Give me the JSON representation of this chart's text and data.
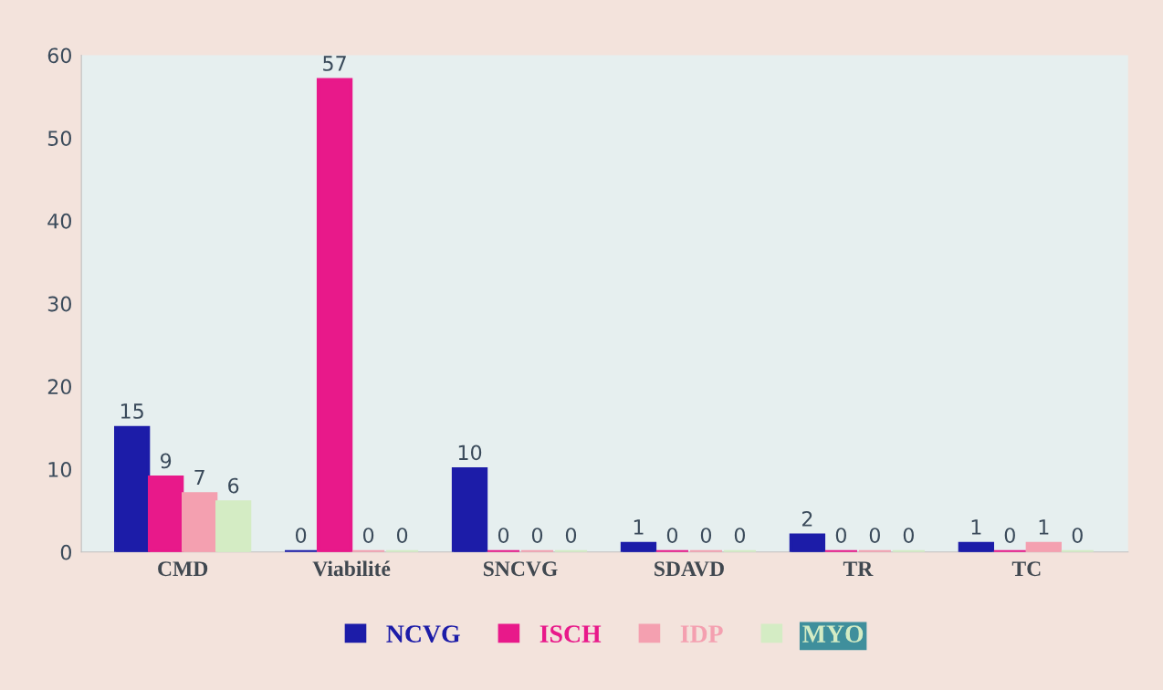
{
  "chart_data": {
    "type": "bar",
    "categories": [
      "CMD",
      "Viabilité",
      "SNCVG",
      "SDAVD",
      "TR",
      "TC"
    ],
    "series": [
      {
        "name": "NCVG",
        "color": "#1c1ca8",
        "values": [
          15,
          0,
          10,
          1,
          2,
          1
        ]
      },
      {
        "name": "ISCH",
        "color": "#e8198a",
        "values": [
          9,
          57,
          0,
          0,
          0,
          0
        ]
      },
      {
        "name": "IDP",
        "color": "#f4a0b0",
        "values": [
          7,
          0,
          0,
          0,
          0,
          1
        ]
      },
      {
        "name": "MYO",
        "color": "#d4ecc4",
        "values": [
          6,
          0,
          0,
          0,
          0,
          0
        ]
      }
    ],
    "ylim": [
      0,
      60
    ],
    "yticks": [
      0,
      10,
      20,
      30,
      40,
      50,
      60
    ],
    "grid": false,
    "legend": "bottom",
    "data_labels": true
  }
}
